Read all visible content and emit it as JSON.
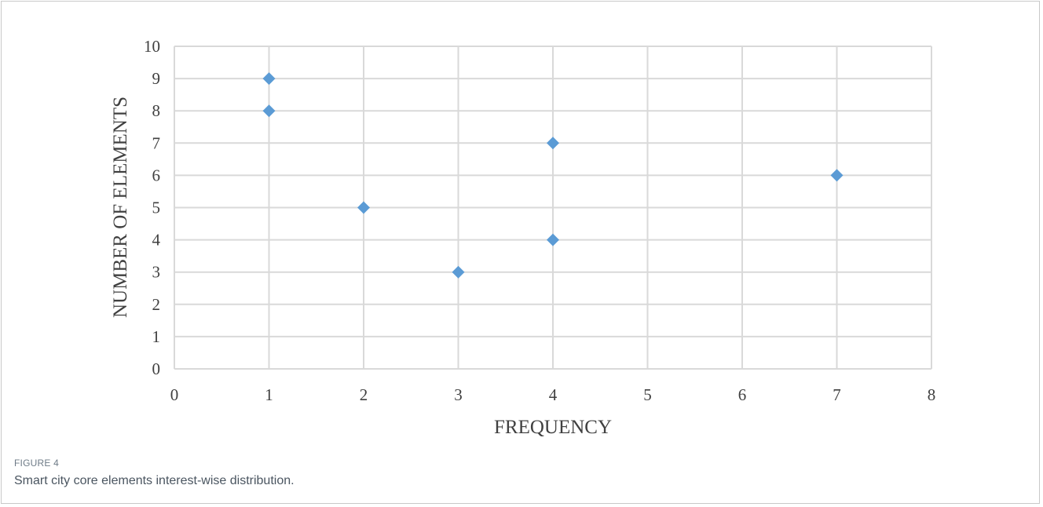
{
  "chart_data": {
    "type": "scatter",
    "xlabel": "FREQUENCY",
    "ylabel": "NUMBER OF ELEMENTS",
    "xlim": [
      0,
      8
    ],
    "ylim": [
      0,
      10
    ],
    "x_ticks": [
      "0",
      "1",
      "2",
      "3",
      "4",
      "5",
      "6",
      "7",
      "8"
    ],
    "y_ticks": [
      "0",
      "1",
      "2",
      "3",
      "4",
      "5",
      "6",
      "7",
      "8",
      "9",
      "10"
    ],
    "grid": true,
    "marker": "diamond",
    "color": "#5b9bd5",
    "points": [
      {
        "x": 1,
        "y": 9
      },
      {
        "x": 1,
        "y": 8
      },
      {
        "x": 4,
        "y": 7
      },
      {
        "x": 7,
        "y": 6
      },
      {
        "x": 2,
        "y": 5
      },
      {
        "x": 4,
        "y": 4
      },
      {
        "x": 3,
        "y": 3
      }
    ]
  },
  "caption": {
    "label": "FIGURE 4",
    "text": "Smart city core elements interest-wise distribution."
  }
}
